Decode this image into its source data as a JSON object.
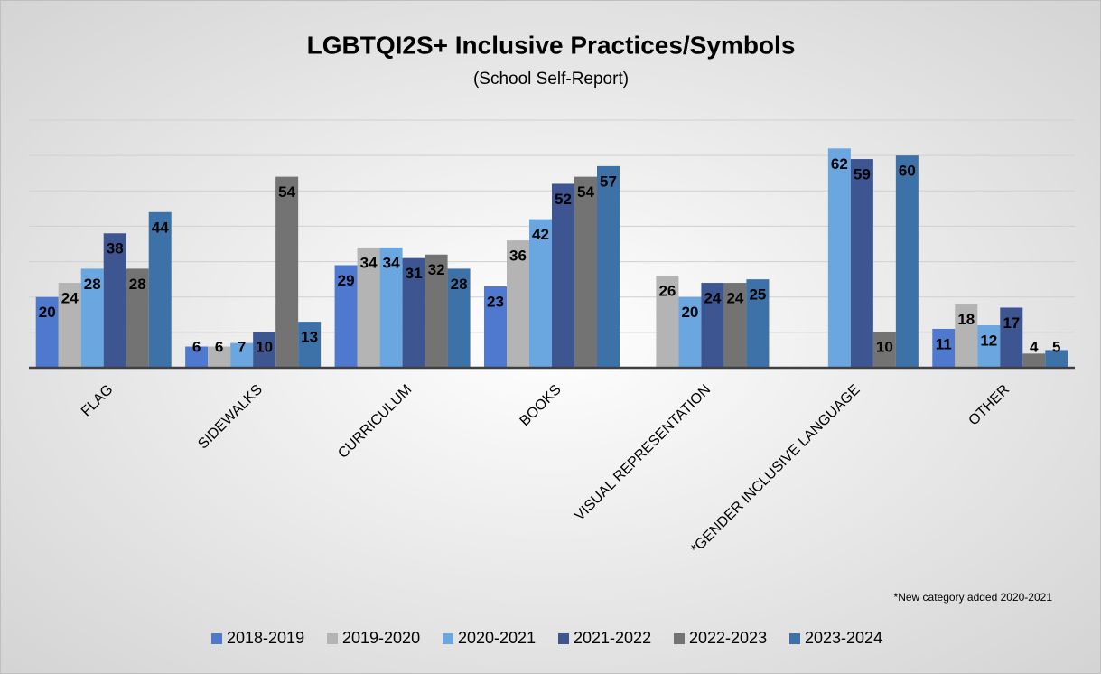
{
  "chart_data": {
    "type": "bar",
    "title": "LGBTQI2S+ Inclusive Practices/Symbols",
    "subtitle": "(School Self-Report)",
    "annotation": "*New category added 2020-2021",
    "categories": [
      "FLAG",
      "SIDEWALKS",
      "CURRICULUM",
      "BOOKS",
      "VISUAL REPRESENTATION",
      "*GENDER INCLUSIVE LANGUAGE",
      "OTHER"
    ],
    "series": [
      {
        "name": "2018-2019",
        "color": "#4f78cf",
        "values": [
          20,
          6,
          29,
          23,
          null,
          null,
          11
        ]
      },
      {
        "name": "2019-2020",
        "color": "#b4b4b4",
        "values": [
          24,
          6,
          34,
          36,
          26,
          null,
          18
        ]
      },
      {
        "name": "2020-2021",
        "color": "#6aa7e0",
        "values": [
          28,
          7,
          34,
          42,
          20,
          62,
          12
        ]
      },
      {
        "name": "2021-2022",
        "color": "#3d5590",
        "values": [
          38,
          10,
          31,
          52,
          24,
          59,
          17
        ]
      },
      {
        "name": "2022-2023",
        "color": "#737373",
        "values": [
          28,
          54,
          32,
          54,
          24,
          10,
          4
        ]
      },
      {
        "name": "2023-2024",
        "color": "#3d72a8",
        "values": [
          44,
          13,
          28,
          57,
          25,
          60,
          5
        ]
      }
    ],
    "ylim": [
      0,
      70
    ],
    "yticks": [
      0,
      10,
      20,
      30,
      40,
      50,
      60,
      70
    ],
    "grid": true,
    "legend": "bottom"
  }
}
